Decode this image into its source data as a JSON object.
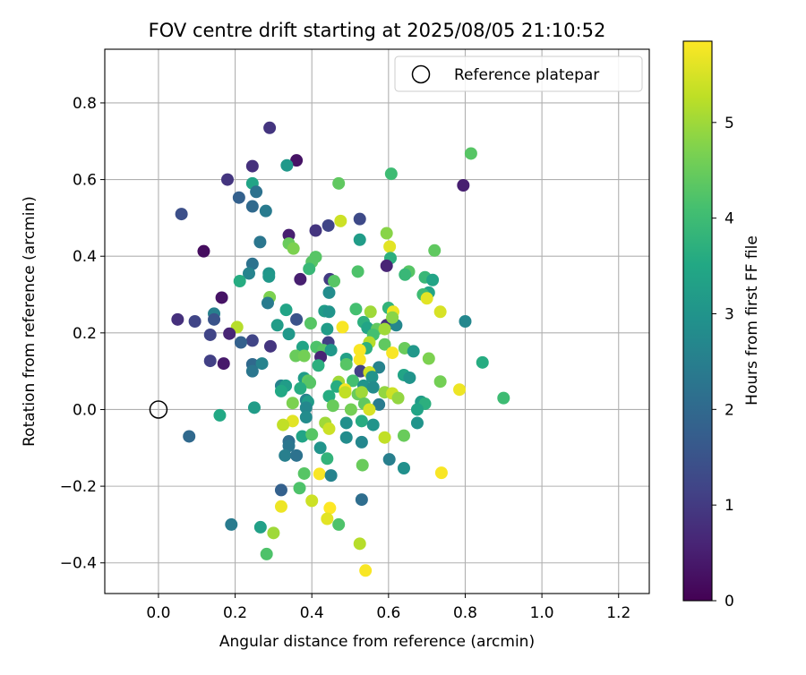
{
  "chart_data": {
    "type": "scatter",
    "title": "FOV centre drift starting at 2025/08/05 21:10:52",
    "xlabel": "Angular distance from reference (arcmin)",
    "ylabel": "Rotation from reference (arcmin)",
    "xlim": [
      -0.14,
      1.28
    ],
    "ylim": [
      -0.48,
      0.94
    ],
    "xticks": [
      "0.0",
      "0.2",
      "0.4",
      "0.6",
      "0.8",
      "1.0",
      "1.2"
    ],
    "yticks": [
      "−0.4",
      "−0.2",
      "0.0",
      "0.2",
      "0.4",
      "0.6",
      "0.8"
    ],
    "xtick_values": [
      0.0,
      0.2,
      0.4,
      0.6,
      0.8,
      1.0,
      1.2
    ],
    "ytick_values": [
      -0.4,
      -0.2,
      0.0,
      0.2,
      0.4,
      0.6,
      0.8
    ],
    "grid": true,
    "legend": {
      "placement": "upper right",
      "label": "Reference platepar"
    },
    "reference_point": {
      "x": 0.0,
      "y": 0.0
    },
    "colorbar": {
      "label": "Hours from first FF file",
      "colormap": "viridis",
      "range": [
        0,
        5.85
      ],
      "ticks": [
        "0",
        "1",
        "2",
        "3",
        "4",
        "5"
      ],
      "tick_values": [
        0,
        1,
        2,
        3,
        4,
        5
      ]
    },
    "points": [
      {
        "x": 0.29,
        "y": 0.735,
        "h": 0.9
      },
      {
        "x": 0.36,
        "y": 0.65,
        "h": 0.3
      },
      {
        "x": 0.795,
        "y": 0.585,
        "h": 0.5
      },
      {
        "x": 0.815,
        "y": 0.668,
        "h": 4.3
      },
      {
        "x": 0.245,
        "y": 0.635,
        "h": 0.8
      },
      {
        "x": 0.335,
        "y": 0.637,
        "h": 3.1
      },
      {
        "x": 0.18,
        "y": 0.6,
        "h": 0.9
      },
      {
        "x": 0.245,
        "y": 0.59,
        "h": 3.4
      },
      {
        "x": 0.47,
        "y": 0.59,
        "h": 4.4
      },
      {
        "x": 0.607,
        "y": 0.615,
        "h": 4.0
      },
      {
        "x": 0.255,
        "y": 0.568,
        "h": 2.2
      },
      {
        "x": 0.21,
        "y": 0.553,
        "h": 1.8
      },
      {
        "x": 0.245,
        "y": 0.53,
        "h": 2.0
      },
      {
        "x": 0.28,
        "y": 0.518,
        "h": 2.4
      },
      {
        "x": 0.06,
        "y": 0.51,
        "h": 1.4
      },
      {
        "x": 0.525,
        "y": 0.497,
        "h": 1.3
      },
      {
        "x": 0.475,
        "y": 0.492,
        "h": 5.4
      },
      {
        "x": 0.443,
        "y": 0.48,
        "h": 1.2
      },
      {
        "x": 0.41,
        "y": 0.467,
        "h": 0.9
      },
      {
        "x": 0.595,
        "y": 0.46,
        "h": 4.8
      },
      {
        "x": 0.34,
        "y": 0.455,
        "h": 0.5
      },
      {
        "x": 0.525,
        "y": 0.443,
        "h": 3.2
      },
      {
        "x": 0.265,
        "y": 0.437,
        "h": 2.3
      },
      {
        "x": 0.34,
        "y": 0.433,
        "h": 4.5
      },
      {
        "x": 0.352,
        "y": 0.42,
        "h": 4.7
      },
      {
        "x": 0.603,
        "y": 0.425,
        "h": 5.6
      },
      {
        "x": 0.72,
        "y": 0.415,
        "h": 4.4
      },
      {
        "x": 0.118,
        "y": 0.413,
        "h": 0.2
      },
      {
        "x": 0.41,
        "y": 0.398,
        "h": 4.3
      },
      {
        "x": 0.605,
        "y": 0.395,
        "h": 3.7
      },
      {
        "x": 0.4,
        "y": 0.385,
        "h": 4.3
      },
      {
        "x": 0.245,
        "y": 0.38,
        "h": 2.2
      },
      {
        "x": 0.393,
        "y": 0.367,
        "h": 3.9
      },
      {
        "x": 0.595,
        "y": 0.375,
        "h": 0.6
      },
      {
        "x": 0.52,
        "y": 0.36,
        "h": 4.2
      },
      {
        "x": 0.653,
        "y": 0.36,
        "h": 4.3
      },
      {
        "x": 0.288,
        "y": 0.355,
        "h": 3.0
      },
      {
        "x": 0.236,
        "y": 0.355,
        "h": 2.6
      },
      {
        "x": 0.288,
        "y": 0.347,
        "h": 3.1
      },
      {
        "x": 0.447,
        "y": 0.34,
        "h": 1.0
      },
      {
        "x": 0.37,
        "y": 0.34,
        "h": 0.5
      },
      {
        "x": 0.643,
        "y": 0.352,
        "h": 3.9
      },
      {
        "x": 0.695,
        "y": 0.345,
        "h": 3.9
      },
      {
        "x": 0.715,
        "y": 0.338,
        "h": 3.4
      },
      {
        "x": 0.458,
        "y": 0.335,
        "h": 4.3
      },
      {
        "x": 0.212,
        "y": 0.335,
        "h": 3.6
      },
      {
        "x": 0.445,
        "y": 0.305,
        "h": 2.8
      },
      {
        "x": 0.705,
        "y": 0.305,
        "h": 3.4
      },
      {
        "x": 0.69,
        "y": 0.3,
        "h": 4.0
      },
      {
        "x": 0.165,
        "y": 0.292,
        "h": 0.3
      },
      {
        "x": 0.29,
        "y": 0.293,
        "h": 4.7
      },
      {
        "x": 0.7,
        "y": 0.29,
        "h": 5.6
      },
      {
        "x": 0.285,
        "y": 0.278,
        "h": 2.4
      },
      {
        "x": 0.6,
        "y": 0.265,
        "h": 3.8
      },
      {
        "x": 0.515,
        "y": 0.262,
        "h": 4.1
      },
      {
        "x": 0.333,
        "y": 0.26,
        "h": 3.4
      },
      {
        "x": 0.433,
        "y": 0.257,
        "h": 3.2
      },
      {
        "x": 0.445,
        "y": 0.255,
        "h": 3.0
      },
      {
        "x": 0.553,
        "y": 0.255,
        "h": 5.0
      },
      {
        "x": 0.612,
        "y": 0.255,
        "h": 5.7
      },
      {
        "x": 0.735,
        "y": 0.255,
        "h": 5.5
      },
      {
        "x": 0.145,
        "y": 0.25,
        "h": 2.5
      },
      {
        "x": 0.05,
        "y": 0.235,
        "h": 0.8
      },
      {
        "x": 0.145,
        "y": 0.235,
        "h": 1.5
      },
      {
        "x": 0.36,
        "y": 0.235,
        "h": 1.5
      },
      {
        "x": 0.095,
        "y": 0.23,
        "h": 1.2
      },
      {
        "x": 0.8,
        "y": 0.23,
        "h": 2.7
      },
      {
        "x": 0.397,
        "y": 0.225,
        "h": 4.3
      },
      {
        "x": 0.535,
        "y": 0.228,
        "h": 3.7
      },
      {
        "x": 0.605,
        "y": 0.227,
        "h": 5.8
      },
      {
        "x": 0.595,
        "y": 0.22,
        "h": 0.8
      },
      {
        "x": 0.31,
        "y": 0.22,
        "h": 3.2
      },
      {
        "x": 0.62,
        "y": 0.22,
        "h": 2.7
      },
      {
        "x": 0.205,
        "y": 0.215,
        "h": 5.2
      },
      {
        "x": 0.48,
        "y": 0.215,
        "h": 5.8
      },
      {
        "x": 0.545,
        "y": 0.213,
        "h": 3.4
      },
      {
        "x": 0.57,
        "y": 0.21,
        "h": 4.4
      },
      {
        "x": 0.61,
        "y": 0.24,
        "h": 4.8
      },
      {
        "x": 0.44,
        "y": 0.21,
        "h": 3.2
      },
      {
        "x": 0.59,
        "y": 0.21,
        "h": 5.0
      },
      {
        "x": 0.185,
        "y": 0.198,
        "h": 0.6
      },
      {
        "x": 0.34,
        "y": 0.197,
        "h": 3.1
      },
      {
        "x": 0.135,
        "y": 0.195,
        "h": 1.2
      },
      {
        "x": 0.56,
        "y": 0.195,
        "h": 4.1
      },
      {
        "x": 0.245,
        "y": 0.18,
        "h": 1.2
      },
      {
        "x": 0.215,
        "y": 0.175,
        "h": 1.8
      },
      {
        "x": 0.443,
        "y": 0.175,
        "h": 1.1
      },
      {
        "x": 0.55,
        "y": 0.175,
        "h": 5.2
      },
      {
        "x": 0.59,
        "y": 0.17,
        "h": 4.4
      },
      {
        "x": 0.376,
        "y": 0.163,
        "h": 3.4
      },
      {
        "x": 0.412,
        "y": 0.163,
        "h": 4.2
      },
      {
        "x": 0.542,
        "y": 0.16,
        "h": 3.7
      },
      {
        "x": 0.642,
        "y": 0.16,
        "h": 4.5
      },
      {
        "x": 0.292,
        "y": 0.165,
        "h": 0.9
      },
      {
        "x": 0.43,
        "y": 0.155,
        "h": 4.3
      },
      {
        "x": 0.45,
        "y": 0.155,
        "h": 3.1
      },
      {
        "x": 0.525,
        "y": 0.155,
        "h": 5.8
      },
      {
        "x": 0.665,
        "y": 0.152,
        "h": 3.1
      },
      {
        "x": 0.61,
        "y": 0.148,
        "h": 5.8
      },
      {
        "x": 0.358,
        "y": 0.14,
        "h": 4.5
      },
      {
        "x": 0.38,
        "y": 0.14,
        "h": 4.6
      },
      {
        "x": 0.423,
        "y": 0.137,
        "h": 0.6
      },
      {
        "x": 0.49,
        "y": 0.132,
        "h": 3.3
      },
      {
        "x": 0.705,
        "y": 0.133,
        "h": 4.7
      },
      {
        "x": 0.525,
        "y": 0.13,
        "h": 5.8
      },
      {
        "x": 0.135,
        "y": 0.127,
        "h": 1.1
      },
      {
        "x": 0.17,
        "y": 0.12,
        "h": 0.4
      },
      {
        "x": 0.845,
        "y": 0.123,
        "h": 3.6
      },
      {
        "x": 0.245,
        "y": 0.118,
        "h": 2.0
      },
      {
        "x": 0.27,
        "y": 0.12,
        "h": 2.6
      },
      {
        "x": 0.49,
        "y": 0.118,
        "h": 4.3
      },
      {
        "x": 0.417,
        "y": 0.115,
        "h": 3.7
      },
      {
        "x": 0.575,
        "y": 0.11,
        "h": 2.6
      },
      {
        "x": 0.245,
        "y": 0.1,
        "h": 2.3
      },
      {
        "x": 0.527,
        "y": 0.1,
        "h": 1.1
      },
      {
        "x": 0.55,
        "y": 0.097,
        "h": 5.4
      },
      {
        "x": 0.64,
        "y": 0.09,
        "h": 3.4
      },
      {
        "x": 0.655,
        "y": 0.083,
        "h": 3.0
      },
      {
        "x": 0.557,
        "y": 0.085,
        "h": 3.0
      },
      {
        "x": 0.38,
        "y": 0.082,
        "h": 3.2
      },
      {
        "x": 0.39,
        "y": 0.075,
        "h": 4.4
      },
      {
        "x": 0.395,
        "y": 0.07,
        "h": 4.3
      },
      {
        "x": 0.47,
        "y": 0.072,
        "h": 5.0
      },
      {
        "x": 0.507,
        "y": 0.075,
        "h": 4.1
      },
      {
        "x": 0.735,
        "y": 0.073,
        "h": 4.6
      },
      {
        "x": 0.32,
        "y": 0.062,
        "h": 2.6
      },
      {
        "x": 0.332,
        "y": 0.062,
        "h": 3.2
      },
      {
        "x": 0.465,
        "y": 0.06,
        "h": 3.6
      },
      {
        "x": 0.535,
        "y": 0.062,
        "h": 3.0
      },
      {
        "x": 0.56,
        "y": 0.058,
        "h": 2.8
      },
      {
        "x": 0.37,
        "y": 0.055,
        "h": 3.6
      },
      {
        "x": 0.487,
        "y": 0.052,
        "h": 5.8
      },
      {
        "x": 0.32,
        "y": 0.048,
        "h": 3.5
      },
      {
        "x": 0.59,
        "y": 0.045,
        "h": 4.9
      },
      {
        "x": 0.785,
        "y": 0.052,
        "h": 5.7
      },
      {
        "x": 0.487,
        "y": 0.045,
        "h": 5.3
      },
      {
        "x": 0.445,
        "y": 0.035,
        "h": 3.6
      },
      {
        "x": 0.52,
        "y": 0.04,
        "h": 4.5
      },
      {
        "x": 0.53,
        "y": 0.045,
        "h": 5.0
      },
      {
        "x": 0.61,
        "y": 0.042,
        "h": 5.4
      },
      {
        "x": 0.9,
        "y": 0.03,
        "h": 4.0
      },
      {
        "x": 0.625,
        "y": 0.03,
        "h": 4.9
      },
      {
        "x": 0.385,
        "y": 0.025,
        "h": 2.6
      },
      {
        "x": 0.39,
        "y": 0.02,
        "h": 3.2
      },
      {
        "x": 0.35,
        "y": 0.017,
        "h": 4.7
      },
      {
        "x": 0.537,
        "y": 0.015,
        "h": 4.4
      },
      {
        "x": 0.575,
        "y": 0.013,
        "h": 2.4
      },
      {
        "x": 0.685,
        "y": 0.02,
        "h": 3.2
      },
      {
        "x": 0.695,
        "y": 0.015,
        "h": 3.7
      },
      {
        "x": 0.455,
        "y": 0.01,
        "h": 4.5
      },
      {
        "x": 0.385,
        "y": 0.005,
        "h": 2.7
      },
      {
        "x": 0.25,
        "y": 0.005,
        "h": 3.2
      },
      {
        "x": 0.502,
        "y": 0.0,
        "h": 4.6
      },
      {
        "x": 0.55,
        "y": 0.0,
        "h": 5.5
      },
      {
        "x": 0.675,
        "y": 0.0,
        "h": 3.4
      },
      {
        "x": 0.16,
        "y": -0.015,
        "h": 3.5
      },
      {
        "x": 0.385,
        "y": -0.02,
        "h": 2.8
      },
      {
        "x": 0.35,
        "y": -0.03,
        "h": 5.6
      },
      {
        "x": 0.435,
        "y": -0.035,
        "h": 5.0
      },
      {
        "x": 0.325,
        "y": -0.04,
        "h": 5.3
      },
      {
        "x": 0.49,
        "y": -0.035,
        "h": 2.9
      },
      {
        "x": 0.53,
        "y": -0.03,
        "h": 3.6
      },
      {
        "x": 0.56,
        "y": -0.04,
        "h": 3.0
      },
      {
        "x": 0.675,
        "y": -0.035,
        "h": 3.0
      },
      {
        "x": 0.445,
        "y": -0.05,
        "h": 5.4
      },
      {
        "x": 0.08,
        "y": -0.07,
        "h": 2.0
      },
      {
        "x": 0.375,
        "y": -0.07,
        "h": 3.4
      },
      {
        "x": 0.4,
        "y": -0.065,
        "h": 4.3
      },
      {
        "x": 0.49,
        "y": -0.073,
        "h": 2.8
      },
      {
        "x": 0.59,
        "y": -0.073,
        "h": 5.3
      },
      {
        "x": 0.64,
        "y": -0.068,
        "h": 4.5
      },
      {
        "x": 0.34,
        "y": -0.083,
        "h": 2.1
      },
      {
        "x": 0.53,
        "y": -0.085,
        "h": 2.7
      },
      {
        "x": 0.34,
        "y": -0.095,
        "h": 2.3
      },
      {
        "x": 0.422,
        "y": -0.1,
        "h": 3.0
      },
      {
        "x": 0.33,
        "y": -0.12,
        "h": 2.5
      },
      {
        "x": 0.36,
        "y": -0.12,
        "h": 2.2
      },
      {
        "x": 0.44,
        "y": -0.128,
        "h": 3.8
      },
      {
        "x": 0.602,
        "y": -0.13,
        "h": 2.5
      },
      {
        "x": 0.64,
        "y": -0.153,
        "h": 2.9
      },
      {
        "x": 0.532,
        "y": -0.145,
        "h": 4.5
      },
      {
        "x": 0.738,
        "y": -0.165,
        "h": 5.8
      },
      {
        "x": 0.38,
        "y": -0.167,
        "h": 4.3
      },
      {
        "x": 0.42,
        "y": -0.168,
        "h": 5.8
      },
      {
        "x": 0.45,
        "y": -0.172,
        "h": 2.6
      },
      {
        "x": 0.32,
        "y": -0.21,
        "h": 1.8
      },
      {
        "x": 0.368,
        "y": -0.205,
        "h": 4.2
      },
      {
        "x": 0.53,
        "y": -0.235,
        "h": 2.1
      },
      {
        "x": 0.4,
        "y": -0.238,
        "h": 5.4
      },
      {
        "x": 0.32,
        "y": -0.253,
        "h": 5.7
      },
      {
        "x": 0.447,
        "y": -0.257,
        "h": 5.9
      },
      {
        "x": 0.44,
        "y": -0.285,
        "h": 5.6
      },
      {
        "x": 0.47,
        "y": -0.3,
        "h": 4.2
      },
      {
        "x": 0.19,
        "y": -0.3,
        "h": 2.4
      },
      {
        "x": 0.266,
        "y": -0.307,
        "h": 3.3
      },
      {
        "x": 0.3,
        "y": -0.322,
        "h": 5.0
      },
      {
        "x": 0.525,
        "y": -0.35,
        "h": 5.2
      },
      {
        "x": 0.282,
        "y": -0.377,
        "h": 4.2
      },
      {
        "x": 0.54,
        "y": -0.42,
        "h": 5.8
      }
    ]
  }
}
